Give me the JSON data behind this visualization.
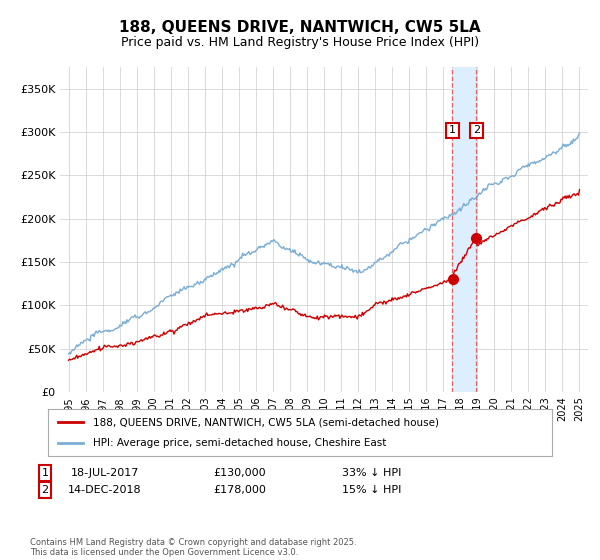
{
  "title": "188, QUEENS DRIVE, NANTWICH, CW5 5LA",
  "subtitle": "Price paid vs. HM Land Registry's House Price Index (HPI)",
  "legend_line1": "188, QUEENS DRIVE, NANTWICH, CW5 5LA (semi-detached house)",
  "legend_line2": "HPI: Average price, semi-detached house, Cheshire East",
  "footer": "Contains HM Land Registry data © Crown copyright and database right 2025.\nThis data is licensed under the Open Government Licence v3.0.",
  "annotation1": {
    "label": "1",
    "date": "18-JUL-2017",
    "price": 130000,
    "note": "33% ↓ HPI"
  },
  "annotation2": {
    "label": "2",
    "date": "14-DEC-2018",
    "price": 178000,
    "note": "15% ↓ HPI"
  },
  "sale1_x": 2017.54,
  "sale2_x": 2018.95,
  "hpi_color": "#7aadd4",
  "price_color": "#cc0000",
  "sale_dot_color": "#cc0000",
  "highlight_color": "#ddeeff",
  "grid_color": "#cccccc",
  "background_color": "#ffffff",
  "ylim": [
    0,
    375000
  ],
  "xlim": [
    1994.5,
    2025.5
  ],
  "yticks": [
    0,
    50000,
    100000,
    150000,
    200000,
    250000,
    300000,
    350000
  ],
  "ytick_labels": [
    "£0",
    "£50K",
    "£100K",
    "£150K",
    "£200K",
    "£250K",
    "£300K",
    "£350K"
  ],
  "fig_width": 6.0,
  "fig_height": 5.6,
  "dpi": 100
}
